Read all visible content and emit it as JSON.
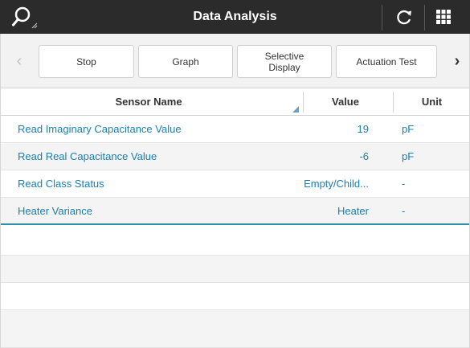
{
  "titlebar": {
    "title": "Data Analysis",
    "icons": [
      "search-icon",
      "refresh-icon",
      "grid-icon"
    ],
    "background": "#2b2b2b"
  },
  "toolbar": {
    "buttons": [
      {
        "label": "Stop"
      },
      {
        "label": "Graph"
      },
      {
        "label": "Selective\nDisplay"
      },
      {
        "label": "Actuation Test"
      }
    ],
    "left_arrow": "‹",
    "right_arrow": "›"
  },
  "table": {
    "headers": {
      "name": "Sensor Name",
      "value": "Value",
      "unit": "Unit"
    },
    "rows": [
      {
        "name": "Read Imaginary Capacitance Value",
        "value": "19",
        "unit": "pF"
      },
      {
        "name": "Read Real Capacitance Value",
        "value": "-6",
        "unit": "pF"
      },
      {
        "name": "Read Class Status",
        "value": "Empty/Child...",
        "unit": "-"
      },
      {
        "name": "Heater Variance",
        "value": "Heater",
        "unit": "-"
      }
    ],
    "text_color": "#1b7fae",
    "selected_row": 3
  }
}
